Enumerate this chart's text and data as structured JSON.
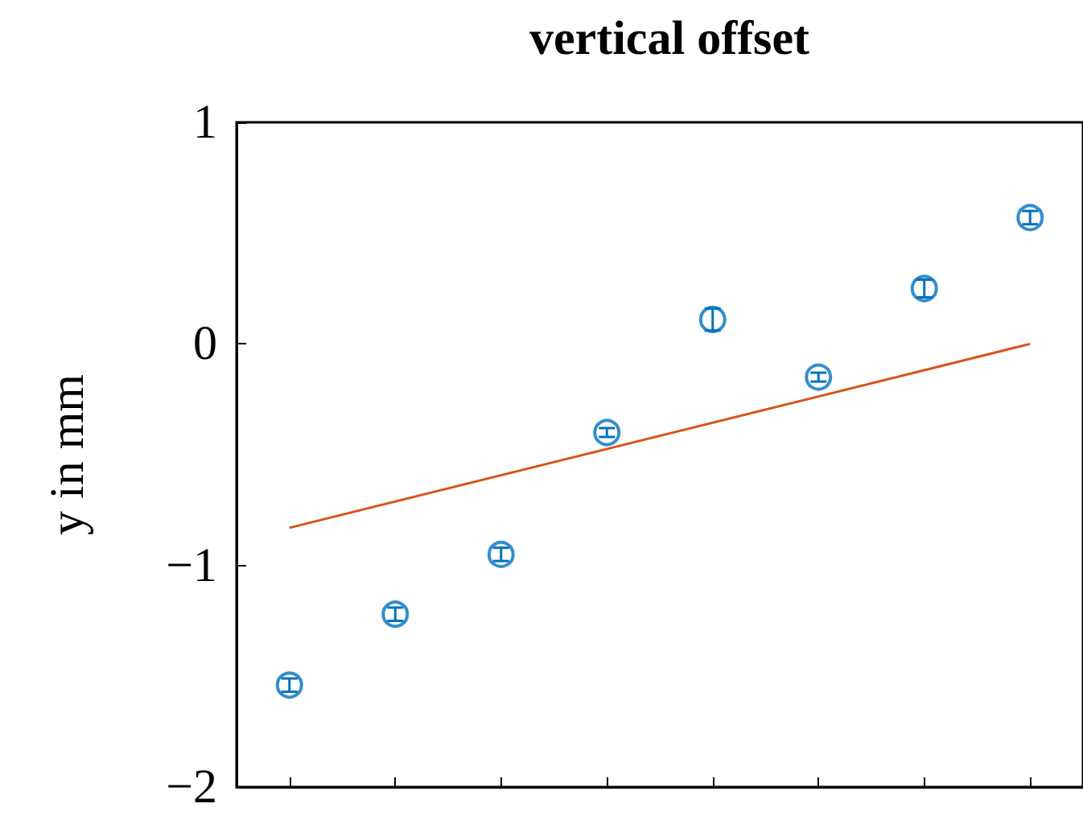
{
  "chart_data": {
    "type": "scatter",
    "title": "vertical offset",
    "ylabel": "y in mm",
    "categories": [
      null,
      null,
      null,
      null,
      null,
      null,
      null,
      null
    ],
    "ylim": [
      -2,
      1
    ],
    "yticks": [
      {
        "value": -2,
        "label": "−2"
      },
      {
        "value": -1,
        "label": "−1"
      },
      0,
      1
    ],
    "grid": false,
    "series": [
      {
        "color": "#0072bd",
        "marker": "circle",
        "values": [
          -1.54,
          -1.22,
          -0.95,
          -0.4,
          0.11,
          -0.15,
          0.25,
          0.57
        ],
        "errors": [
          0.03,
          0.03,
          0.03,
          0.02,
          0.05,
          0.02,
          0.04,
          0.03
        ]
      },
      {
        "type": "line",
        "color": "#d95319",
        "values": [
          -0.83,
          null,
          null,
          null,
          null,
          null,
          null,
          0
        ]
      }
    ]
  }
}
